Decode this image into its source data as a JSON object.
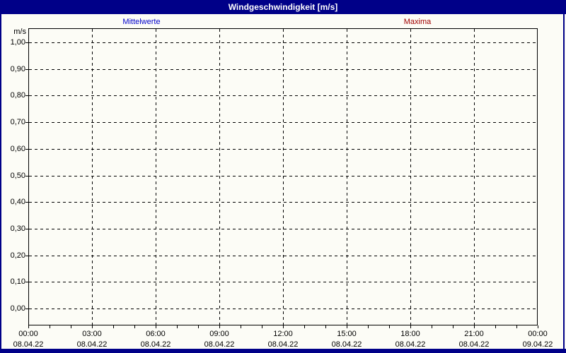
{
  "window": {
    "title": "Windgeschwindigkeit [m/s]"
  },
  "colors": {
    "title_bar_bg": "#000088",
    "title_fg": "#FFFFFF",
    "page_bg": "#FCFCF6",
    "frame_border": "#000088",
    "grid": "#000000",
    "series_mittelwerte": "#0000CC",
    "series_maxima": "#A00000"
  },
  "chart_data": {
    "type": "line",
    "title": "Windgeschwindigkeit [m/s]",
    "ylabel": "m/s",
    "xlabel": "",
    "ylim": [
      0.0,
      1.0
    ],
    "grid": "dashed",
    "legend_position": "top",
    "y_tick_labels": [
      "1,00",
      "0,90",
      "0,80",
      "0,70",
      "0,60",
      "0,50",
      "0,40",
      "0,30",
      "0,20",
      "0,10",
      "0,00"
    ],
    "x_tick_times": [
      "00:00",
      "03:00",
      "06:00",
      "09:00",
      "12:00",
      "15:00",
      "18:00",
      "21:00",
      "00:00"
    ],
    "x_tick_dates": [
      "08.04.22",
      "08.04.22",
      "08.04.22",
      "08.04.22",
      "08.04.22",
      "08.04.22",
      "08.04.22",
      "08.04.22",
      "09.04.22"
    ],
    "series": [
      {
        "name": "Mittelwerte",
        "color": "#0000CC",
        "values": []
      },
      {
        "name": "Maxima",
        "color": "#A00000",
        "values": []
      }
    ]
  }
}
